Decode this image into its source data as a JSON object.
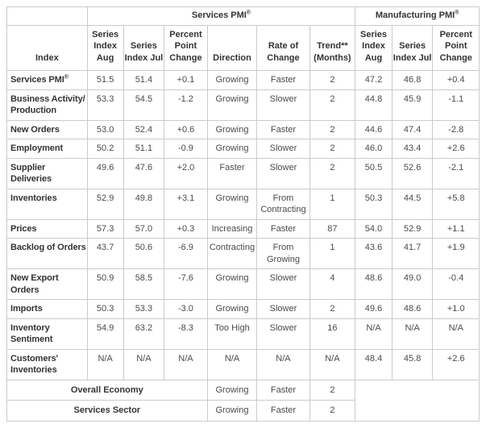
{
  "page": {
    "background": "#ffffff",
    "border_color": "#cbcbcb",
    "label_text_color": "#333333",
    "value_text_color": "#4a4a4a"
  },
  "chart_data": {
    "type": "table",
    "title": "",
    "column_groups": [
      {
        "label": "Services PMI",
        "sup": "®",
        "span": 6
      },
      {
        "label": "Manufacturing PMI",
        "sup": "®",
        "span": 3
      }
    ],
    "columns": [
      "Index",
      "Series\nIndex\nAug",
      "Series\nIndex Jul",
      "Percent\nPoint\nChange",
      "Direction",
      "Rate of\nChange",
      "Trend**\n(Months)",
      "Series\nIndex\nAug",
      "Series\nIndex Jul",
      "Percent\nPoint\nChange"
    ],
    "rows": [
      {
        "label": "Services PMI",
        "label_sup": "®",
        "cells": [
          "51.5",
          "51.4",
          "+0.1",
          "Growing",
          "Faster",
          "2",
          "47.2",
          "46.8",
          "+0.4"
        ]
      },
      {
        "label": "Business Activity/\nProduction",
        "cells": [
          "53.3",
          "54.5",
          "-1.2",
          "Growing",
          "Slower",
          "2",
          "44.8",
          "45.9",
          "-1.1"
        ]
      },
      {
        "label": "New Orders",
        "cells": [
          "53.0",
          "52.4",
          "+0.6",
          "Growing",
          "Faster",
          "2",
          "44.6",
          "47.4",
          "-2.8"
        ]
      },
      {
        "label": "Employment",
        "cells": [
          "50.2",
          "51.1",
          "-0.9",
          "Growing",
          "Slower",
          "2",
          "46.0",
          "43.4",
          "+2.6"
        ]
      },
      {
        "label": "Supplier\nDeliveries",
        "cells": [
          "49.6",
          "47.6",
          "+2.0",
          "Faster",
          "Slower",
          "2",
          "50.5",
          "52.6",
          "-2.1"
        ]
      },
      {
        "label": "Inventories",
        "cells": [
          "52.9",
          "49.8",
          "+3.1",
          "Growing",
          "From\nContracting",
          "1",
          "50.3",
          "44.5",
          "+5.8"
        ]
      },
      {
        "label": "Prices",
        "cells": [
          "57.3",
          "57.0",
          "+0.3",
          "Increasing",
          "Faster",
          "87",
          "54.0",
          "52.9",
          "+1.1"
        ]
      },
      {
        "label": "Backlog of Orders",
        "cells": [
          "43.7",
          "50.6",
          "-6.9",
          "Contracting",
          "From\nGrowing",
          "1",
          "43.6",
          "41.7",
          "+1.9"
        ]
      },
      {
        "label": "New Export\nOrders",
        "cells": [
          "50.9",
          "58.5",
          "-7.6",
          "Growing",
          "Slower",
          "4",
          "48.6",
          "49.0",
          "-0.4"
        ]
      },
      {
        "label": "Imports",
        "cells": [
          "50.3",
          "53.3",
          "-3.0",
          "Growing",
          "Slower",
          "2",
          "49.6",
          "48.6",
          "+1.0"
        ]
      },
      {
        "label": "Inventory\nSentiment",
        "cells": [
          "54.9",
          "63.2",
          "-8.3",
          "Too High",
          "Slower",
          "16",
          "N/A",
          "N/A",
          "N/A"
        ]
      },
      {
        "label": "Customers'\nInventories",
        "cells": [
          "N/A",
          "N/A",
          "N/A",
          "N/A",
          "N/A",
          "N/A",
          "48.4",
          "45.8",
          "+2.6"
        ]
      }
    ],
    "summary_rows": [
      {
        "label": "Overall Economy",
        "cells": [
          "Growing",
          "Faster",
          "2"
        ]
      },
      {
        "label": "Services Sector",
        "cells": [
          "Growing",
          "Faster",
          "2"
        ]
      }
    ]
  }
}
